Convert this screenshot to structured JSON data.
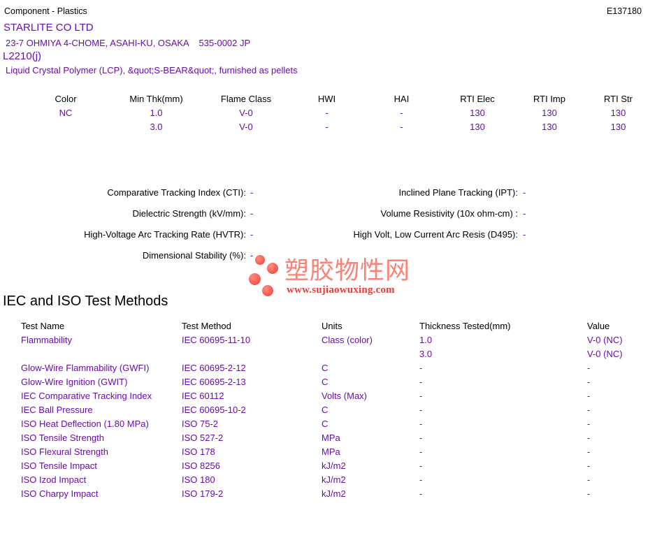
{
  "page_header": {
    "left": "Component - Plastics",
    "right": "E137180"
  },
  "company_block": {
    "company": "STARLITE CO LTD",
    "address": "23-7 OHMIYA 4-CHOME, ASAHI-KU, OSAKA    535-0002 JP",
    "model": "L2210(j)",
    "description": "Liquid Crystal Polymer (LCP), &quot;S-BEAR&quot;, furnished as pellets"
  },
  "ratings_table": {
    "headers": [
      "Color",
      "Min Thk(mm)",
      "Flame Class",
      "HWI",
      "HAI",
      "RTI Elec",
      "RTI Imp",
      "RTI Str"
    ],
    "rows": [
      [
        "NC",
        "1.0",
        "V-0",
        "-",
        "-",
        "130",
        "130",
        "130"
      ],
      [
        "",
        "3.0",
        "V-0",
        "-",
        "-",
        "130",
        "130",
        "130"
      ]
    ]
  },
  "electrical": {
    "left": [
      {
        "label": "Comparative Tracking Index (CTI):",
        "value": "-"
      },
      {
        "label": "Dielectric Strength (kV/mm):",
        "value": "-"
      },
      {
        "label": "High-Voltage Arc Tracking Rate (HVTR):",
        "value": "-"
      },
      {
        "label": "Dimensional Stability (%):",
        "value": "-"
      }
    ],
    "right": [
      {
        "label": "Inclined Plane Tracking (IPT):",
        "value": "-"
      },
      {
        "label": "Volume Resistivity (10x ohm-cm) :",
        "value": "-"
      },
      {
        "label": "High Volt, Low Current Arc Resis (D495):",
        "value": "-"
      }
    ]
  },
  "watermark": {
    "text": "塑胶物性网",
    "url": "www.sujiaowuxing.com",
    "dot_color": "#f5554b",
    "text_color": "#fa8277",
    "url_color": "#e63e38"
  },
  "test_methods": {
    "title": "IEC and ISO Test Methods",
    "headers": [
      "Test Name",
      "Test Method",
      "Units",
      "Thickness Tested(mm)",
      "Value"
    ],
    "rows": [
      [
        "Flammability",
        "IEC 60695-11-10",
        "Class (color)",
        "1.0",
        "V-0 (NC)"
      ],
      [
        "",
        "",
        "",
        "3.0",
        "V-0 (NC)"
      ],
      [
        "Glow-Wire Flammability (GWFI)",
        "IEC 60695-2-12",
        "C",
        "-",
        "-"
      ],
      [
        "Glow-Wire Ignition (GWIT)",
        "IEC 60695-2-13",
        "C",
        "-",
        "-"
      ],
      [
        "IEC Comparative Tracking Index",
        "IEC 60112",
        "Volts (Max)",
        "-",
        "-"
      ],
      [
        "IEC Ball Pressure",
        "IEC 60695-10-2",
        "C",
        "-",
        "-"
      ],
      [
        "ISO Heat Deflection (1.80 MPa)",
        "ISO 75-2",
        "C",
        "-",
        "-"
      ],
      [
        "ISO Tensile Strength",
        "ISO 527-2",
        "MPa",
        "-",
        "-"
      ],
      [
        "ISO Flexural Strength",
        "ISO 178",
        "MPa",
        "-",
        "-"
      ],
      [
        "ISO Tensile Impact",
        "ISO 8256",
        "kJ/m2",
        "-",
        "-"
      ],
      [
        "ISO Izod Impact",
        "ISO 180",
        "kJ/m2",
        "-",
        "-"
      ],
      [
        "ISO Charpy Impact",
        "ISO 179-2",
        "kJ/m2",
        "-",
        "-"
      ]
    ]
  },
  "colors": {
    "data_purple": "#6a0dad",
    "text_black": "#000000"
  }
}
